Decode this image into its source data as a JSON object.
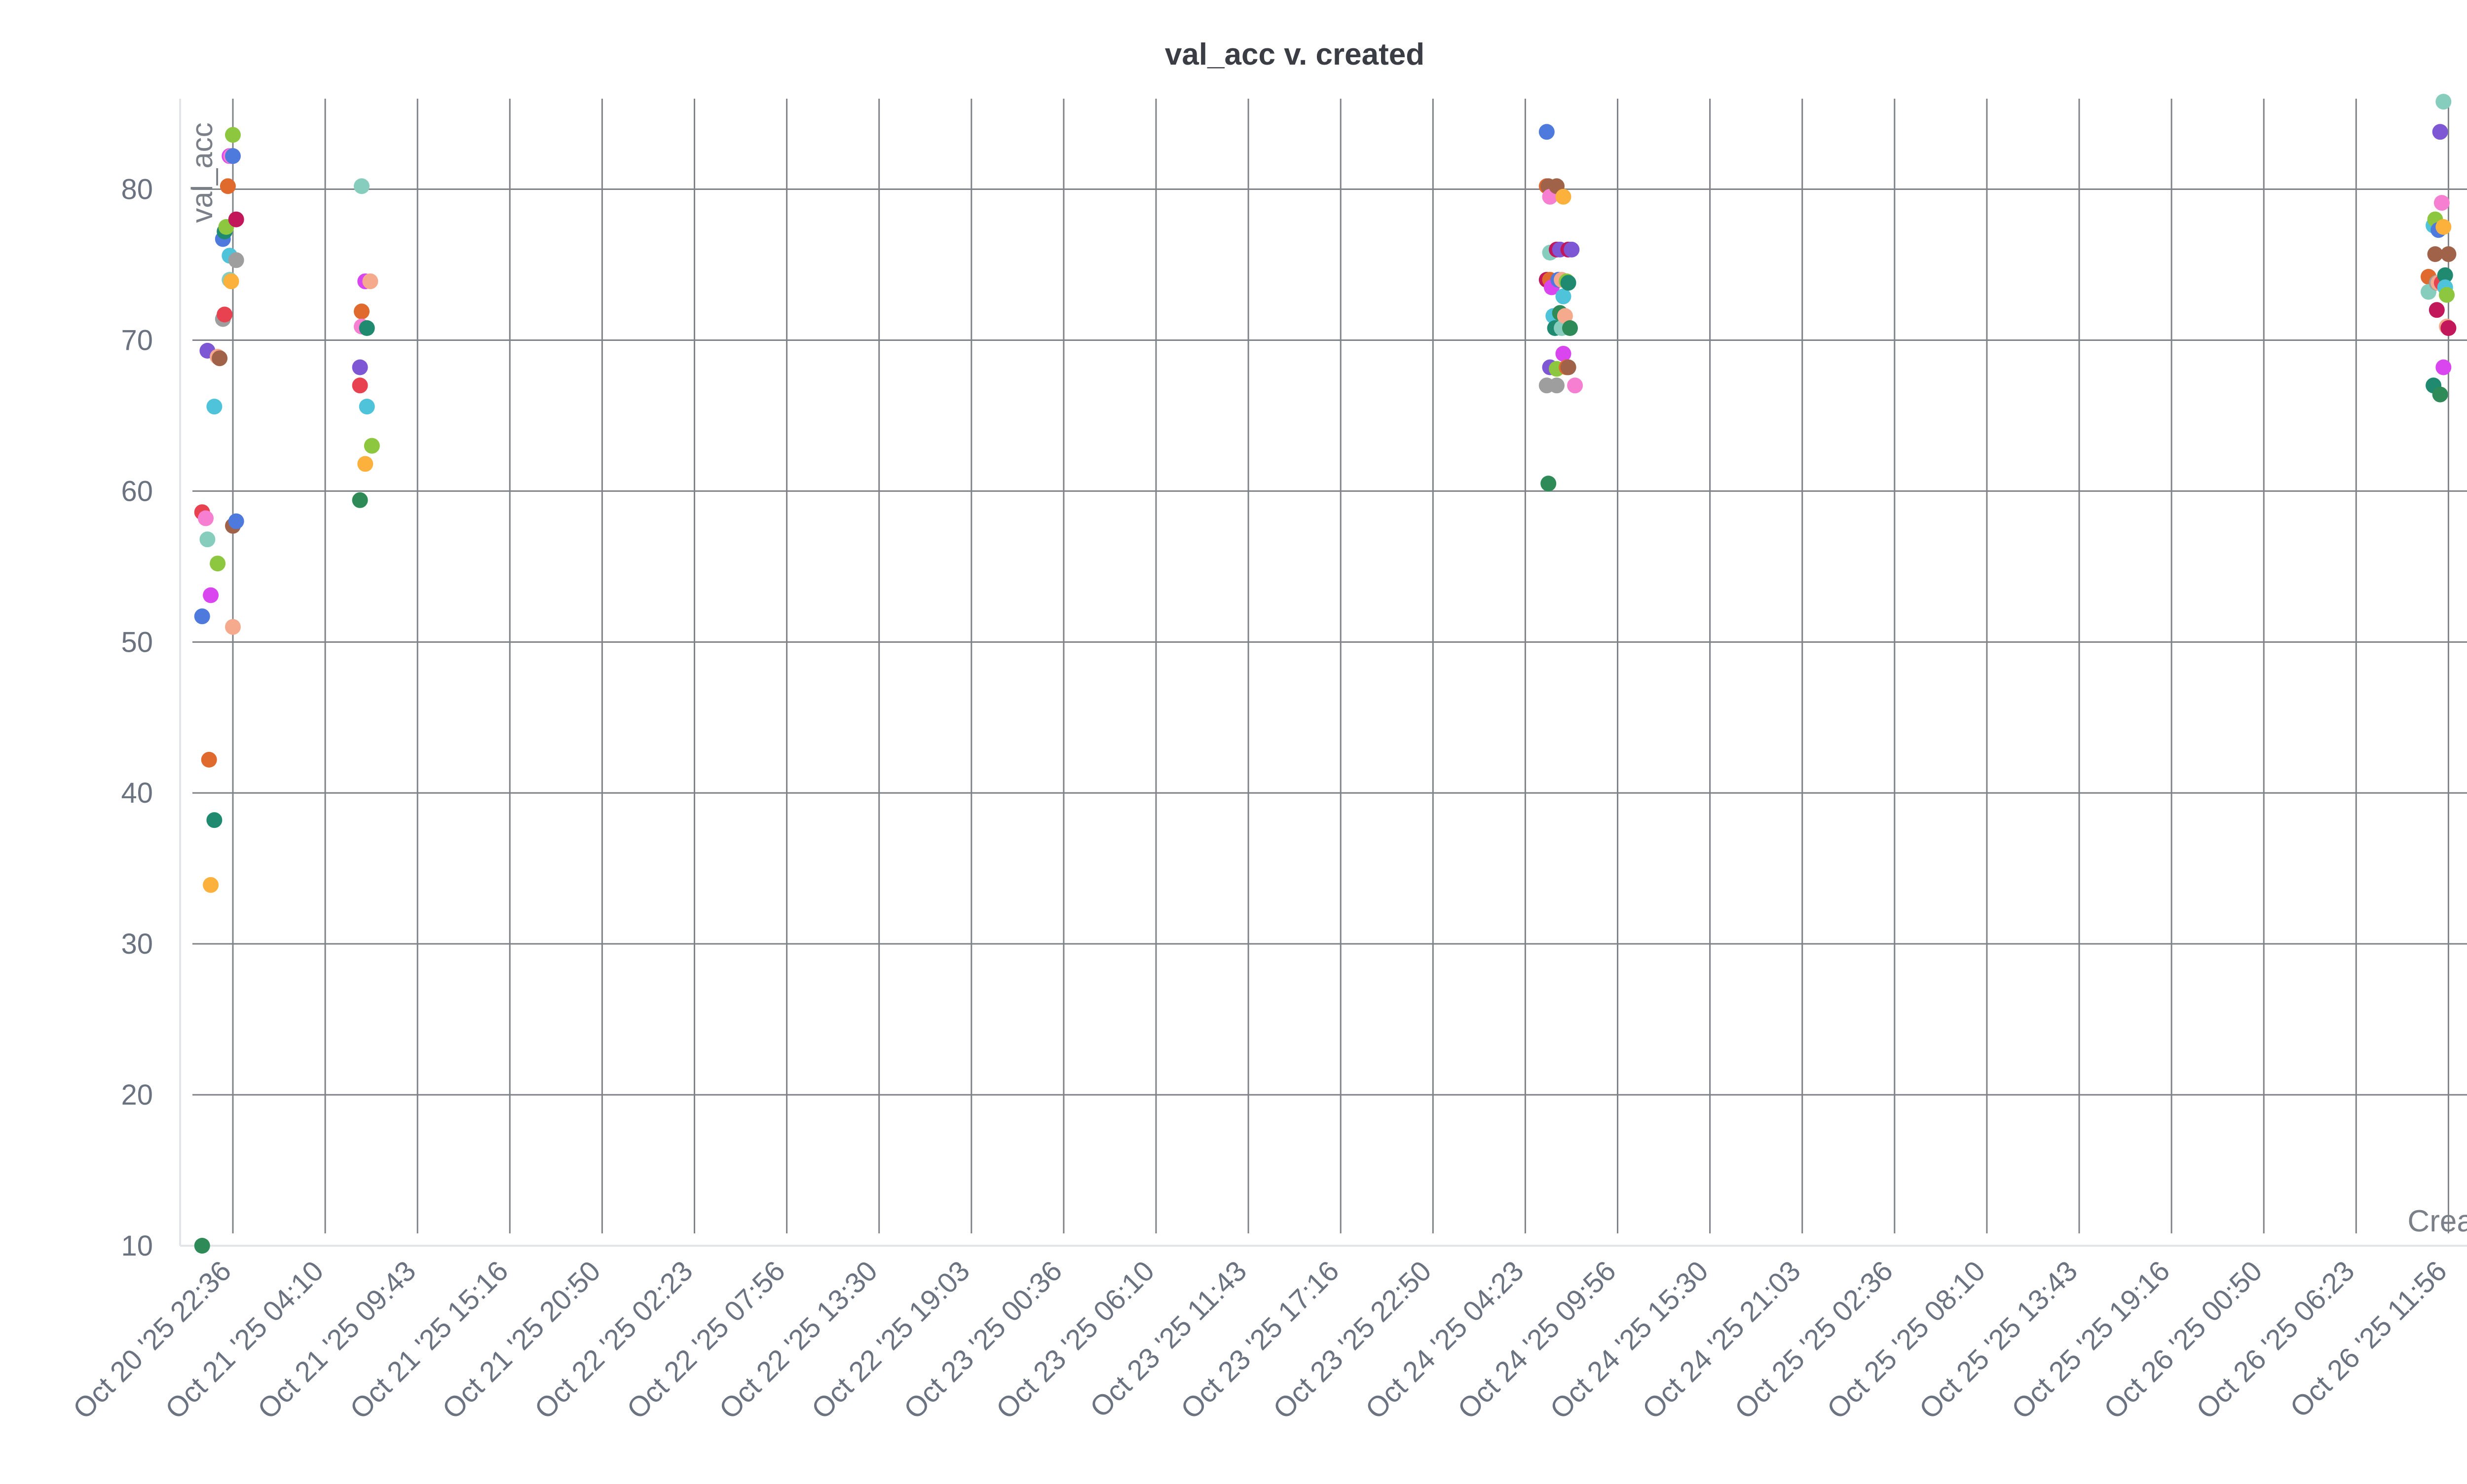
{
  "chart_data": {
    "type": "scatter",
    "title": "val_acc v. created",
    "xlabel": "Created",
    "ylabel": "val_acc",
    "ylim": [
      10,
      86
    ],
    "yticks": [
      10,
      20,
      30,
      40,
      50,
      60,
      70,
      80
    ],
    "grid": true,
    "x_tick_labels": [
      "Oct 20 '25 22:36",
      "Oct 21 '25 04:10",
      "Oct 21 '25 09:43",
      "Oct 21 '25 15:16",
      "Oct 21 '25 20:50",
      "Oct 22 '25 02:23",
      "Oct 22 '25 07:56",
      "Oct 22 '25 13:30",
      "Oct 22 '25 19:03",
      "Oct 23 '25 00:36",
      "Oct 23 '25 06:10",
      "Oct 23 '25 11:43",
      "Oct 23 '25 17:16",
      "Oct 23 '25 22:50",
      "Oct 24 '25 04:23",
      "Oct 24 '25 09:56",
      "Oct 24 '25 15:30",
      "Oct 24 '25 21:03",
      "Oct 25 '25 02:36",
      "Oct 25 '25 08:10",
      "Oct 25 '25 13:43",
      "Oct 25 '25 19:16",
      "Oct 26 '25 00:50",
      "Oct 26 '25 06:23",
      "Oct 26 '25 11:56"
    ],
    "points": [
      {
        "x": "2025-10-20T20:45",
        "y": 10.0,
        "color": "#2e8b57"
      },
      {
        "x": "2025-10-20T20:45",
        "y": 51.7,
        "color": "#4e79dd"
      },
      {
        "x": "2025-10-20T20:45",
        "y": 58.6,
        "color": "#e8414f"
      },
      {
        "x": "2025-10-20T20:58",
        "y": 58.2,
        "color": "#f77fd1"
      },
      {
        "x": "2025-10-20T21:04",
        "y": 69.3,
        "color": "#7e57d4"
      },
      {
        "x": "2025-10-20T21:04",
        "y": 56.8,
        "color": "#86cdbd"
      },
      {
        "x": "2025-10-20T21:10",
        "y": 42.2,
        "color": "#e0692e"
      },
      {
        "x": "2025-10-20T21:16",
        "y": 53.1,
        "color": "#d946ef"
      },
      {
        "x": "2025-10-20T21:16",
        "y": 33.9,
        "color": "#fbb13c"
      },
      {
        "x": "2025-10-20T21:29",
        "y": 65.6,
        "color": "#4fc3d9"
      },
      {
        "x": "2025-10-20T21:29",
        "y": 38.2,
        "color": "#1f8a70"
      },
      {
        "x": "2025-10-20T21:41",
        "y": 55.2,
        "color": "#8dc63f"
      },
      {
        "x": "2025-10-20T21:41",
        "y": 68.9,
        "color": "#f5a98d"
      },
      {
        "x": "2025-10-20T21:48",
        "y": 68.8,
        "color": "#a0634a"
      },
      {
        "x": "2025-10-20T22:00",
        "y": 76.7,
        "color": "#4e79dd"
      },
      {
        "x": "2025-10-20T22:00",
        "y": 71.4,
        "color": "#9e9e9e"
      },
      {
        "x": "2025-10-20T22:06",
        "y": 71.7,
        "color": "#e8414f"
      },
      {
        "x": "2025-10-20T22:06",
        "y": 77.2,
        "color": "#1f8a70"
      },
      {
        "x": "2025-10-20T22:12",
        "y": 77.5,
        "color": "#8dc63f"
      },
      {
        "x": "2025-10-20T22:18",
        "y": 80.2,
        "color": "#e0692e"
      },
      {
        "x": "2025-10-20T22:24",
        "y": 75.6,
        "color": "#4fc3d9"
      },
      {
        "x": "2025-10-20T22:24",
        "y": 74.0,
        "color": "#86cdbd"
      },
      {
        "x": "2025-10-20T22:24",
        "y": 82.2,
        "color": "#d946ef"
      },
      {
        "x": "2025-10-20T22:30",
        "y": 82.2,
        "color": "#f77fd1"
      },
      {
        "x": "2025-10-20T22:30",
        "y": 73.9,
        "color": "#fbb13c"
      },
      {
        "x": "2025-10-20T22:36",
        "y": 83.6,
        "color": "#8dc63f"
      },
      {
        "x": "2025-10-20T22:36",
        "y": 82.2,
        "color": "#4e79dd"
      },
      {
        "x": "2025-10-20T22:36",
        "y": 51.0,
        "color": "#f5a98d"
      },
      {
        "x": "2025-10-20T22:36",
        "y": 57.7,
        "color": "#a0634a"
      },
      {
        "x": "2025-10-20T22:48",
        "y": 78.0,
        "color": "#c2185b"
      },
      {
        "x": "2025-10-20T22:48",
        "y": 75.3,
        "color": "#9e9e9e"
      },
      {
        "x": "2025-10-20T22:48",
        "y": 58.0,
        "color": "#4e79dd"
      },
      {
        "x": "2025-10-21T06:15",
        "y": 59.4,
        "color": "#2e8b57"
      },
      {
        "x": "2025-10-21T06:15",
        "y": 67.0,
        "color": "#e8414f"
      },
      {
        "x": "2025-10-21T06:15",
        "y": 68.2,
        "color": "#7e57d4"
      },
      {
        "x": "2025-10-21T06:21",
        "y": 71.9,
        "color": "#e0692e"
      },
      {
        "x": "2025-10-21T06:21",
        "y": 70.9,
        "color": "#f77fd1"
      },
      {
        "x": "2025-10-21T06:21",
        "y": 80.2,
        "color": "#86cdbd"
      },
      {
        "x": "2025-10-21T06:34",
        "y": 73.9,
        "color": "#d946ef"
      },
      {
        "x": "2025-10-21T06:34",
        "y": 61.8,
        "color": "#fbb13c"
      },
      {
        "x": "2025-10-21T06:40",
        "y": 65.6,
        "color": "#4fc3d9"
      },
      {
        "x": "2025-10-21T06:40",
        "y": 70.8,
        "color": "#1f8a70"
      },
      {
        "x": "2025-10-21T06:52",
        "y": 73.9,
        "color": "#f5a98d"
      },
      {
        "x": "2025-10-21T06:58",
        "y": 63.0,
        "color": "#8dc63f"
      },
      {
        "x": "2025-10-24T05:40",
        "y": 83.8,
        "color": "#4e79dd"
      },
      {
        "x": "2025-10-24T05:40",
        "y": 80.2,
        "color": "#e0692e"
      },
      {
        "x": "2025-10-24T05:40",
        "y": 74.0,
        "color": "#c2185b"
      },
      {
        "x": "2025-10-24T05:40",
        "y": 67.0,
        "color": "#9e9e9e"
      },
      {
        "x": "2025-10-24T05:46",
        "y": 80.2,
        "color": "#a0634a"
      },
      {
        "x": "2025-10-24T05:46",
        "y": 60.5,
        "color": "#2e8b57"
      },
      {
        "x": "2025-10-24T05:52",
        "y": 79.5,
        "color": "#f77fd1"
      },
      {
        "x": "2025-10-24T05:52",
        "y": 75.8,
        "color": "#86cdbd"
      },
      {
        "x": "2025-10-24T05:52",
        "y": 74.0,
        "color": "#e0692e"
      },
      {
        "x": "2025-10-24T05:52",
        "y": 68.2,
        "color": "#7e57d4"
      },
      {
        "x": "2025-10-24T05:58",
        "y": 73.5,
        "color": "#d946ef"
      },
      {
        "x": "2025-10-24T06:04",
        "y": 71.6,
        "color": "#4fc3d9"
      },
      {
        "x": "2025-10-24T06:10",
        "y": 70.8,
        "color": "#1f8a70"
      },
      {
        "x": "2025-10-24T06:16",
        "y": 80.2,
        "color": "#a0634a"
      },
      {
        "x": "2025-10-24T06:16",
        "y": 76.0,
        "color": "#c2185b"
      },
      {
        "x": "2025-10-24T06:16",
        "y": 68.1,
        "color": "#8dc63f"
      },
      {
        "x": "2025-10-24T06:16",
        "y": 67.0,
        "color": "#9e9e9e"
      },
      {
        "x": "2025-10-24T06:22",
        "y": 74.0,
        "color": "#4e79dd"
      },
      {
        "x": "2025-10-24T06:28",
        "y": 76.0,
        "color": "#7e57d4"
      },
      {
        "x": "2025-10-24T06:28",
        "y": 71.8,
        "color": "#2e8b57"
      },
      {
        "x": "2025-10-24T06:34",
        "y": 74.0,
        "color": "#f5a98d"
      },
      {
        "x": "2025-10-24T06:34",
        "y": 70.8,
        "color": "#86cdbd"
      },
      {
        "x": "2025-10-24T06:40",
        "y": 79.5,
        "color": "#fbb13c"
      },
      {
        "x": "2025-10-24T06:40",
        "y": 72.9,
        "color": "#4fc3d9"
      },
      {
        "x": "2025-10-24T06:40",
        "y": 69.1,
        "color": "#d946ef"
      },
      {
        "x": "2025-10-24T06:46",
        "y": 71.6,
        "color": "#f5a98d"
      },
      {
        "x": "2025-10-24T06:52",
        "y": 73.9,
        "color": "#8dc63f"
      },
      {
        "x": "2025-10-24T06:52",
        "y": 68.2,
        "color": "#e0692e"
      },
      {
        "x": "2025-10-24T06:58",
        "y": 76.0,
        "color": "#c2185b"
      },
      {
        "x": "2025-10-24T06:58",
        "y": 73.8,
        "color": "#1f8a70"
      },
      {
        "x": "2025-10-24T06:58",
        "y": 68.2,
        "color": "#a0634a"
      },
      {
        "x": "2025-10-24T07:04",
        "y": 70.8,
        "color": "#2e8b57"
      },
      {
        "x": "2025-10-24T07:10",
        "y": 76.0,
        "color": "#7e57d4"
      },
      {
        "x": "2025-10-24T07:22",
        "y": 67.0,
        "color": "#f77fd1"
      },
      {
        "x": "2025-10-26T10:44",
        "y": 74.2,
        "color": "#e0692e"
      },
      {
        "x": "2025-10-26T10:44",
        "y": 73.2,
        "color": "#86cdbd"
      },
      {
        "x": "2025-10-26T11:02",
        "y": 77.6,
        "color": "#4fc3d9"
      },
      {
        "x": "2025-10-26T11:02",
        "y": 67.0,
        "color": "#1f8a70"
      },
      {
        "x": "2025-10-26T11:08",
        "y": 78.0,
        "color": "#8dc63f"
      },
      {
        "x": "2025-10-26T11:08",
        "y": 75.7,
        "color": "#a0634a"
      },
      {
        "x": "2025-10-26T11:14",
        "y": 72.0,
        "color": "#c2185b"
      },
      {
        "x": "2025-10-26T11:14",
        "y": 73.8,
        "color": "#9e9e9e"
      },
      {
        "x": "2025-10-26T11:20",
        "y": 77.3,
        "color": "#4e79dd"
      },
      {
        "x": "2025-10-26T11:20",
        "y": 73.8,
        "color": "#f5a98d"
      },
      {
        "x": "2025-10-26T11:26",
        "y": 83.8,
        "color": "#7e57d4"
      },
      {
        "x": "2025-10-26T11:26",
        "y": 66.4,
        "color": "#2e8b57"
      },
      {
        "x": "2025-10-26T11:32",
        "y": 79.1,
        "color": "#f77fd1"
      },
      {
        "x": "2025-10-26T11:32",
        "y": 73.8,
        "color": "#e8414f"
      },
      {
        "x": "2025-10-26T11:38",
        "y": 85.8,
        "color": "#86cdbd"
      },
      {
        "x": "2025-10-26T11:38",
        "y": 77.5,
        "color": "#fbb13c"
      },
      {
        "x": "2025-10-26T11:38",
        "y": 68.2,
        "color": "#d946ef"
      },
      {
        "x": "2025-10-26T11:44",
        "y": 74.3,
        "color": "#1f8a70"
      },
      {
        "x": "2025-10-26T11:44",
        "y": 73.5,
        "color": "#4fc3d9"
      },
      {
        "x": "2025-10-26T11:50",
        "y": 70.9,
        "color": "#f5a98d"
      },
      {
        "x": "2025-10-26T11:50",
        "y": 73.0,
        "color": "#8dc63f"
      },
      {
        "x": "2025-10-26T11:56",
        "y": 75.7,
        "color": "#a0634a"
      },
      {
        "x": "2025-10-26T11:56",
        "y": 70.8,
        "color": "#c2185b"
      }
    ]
  }
}
